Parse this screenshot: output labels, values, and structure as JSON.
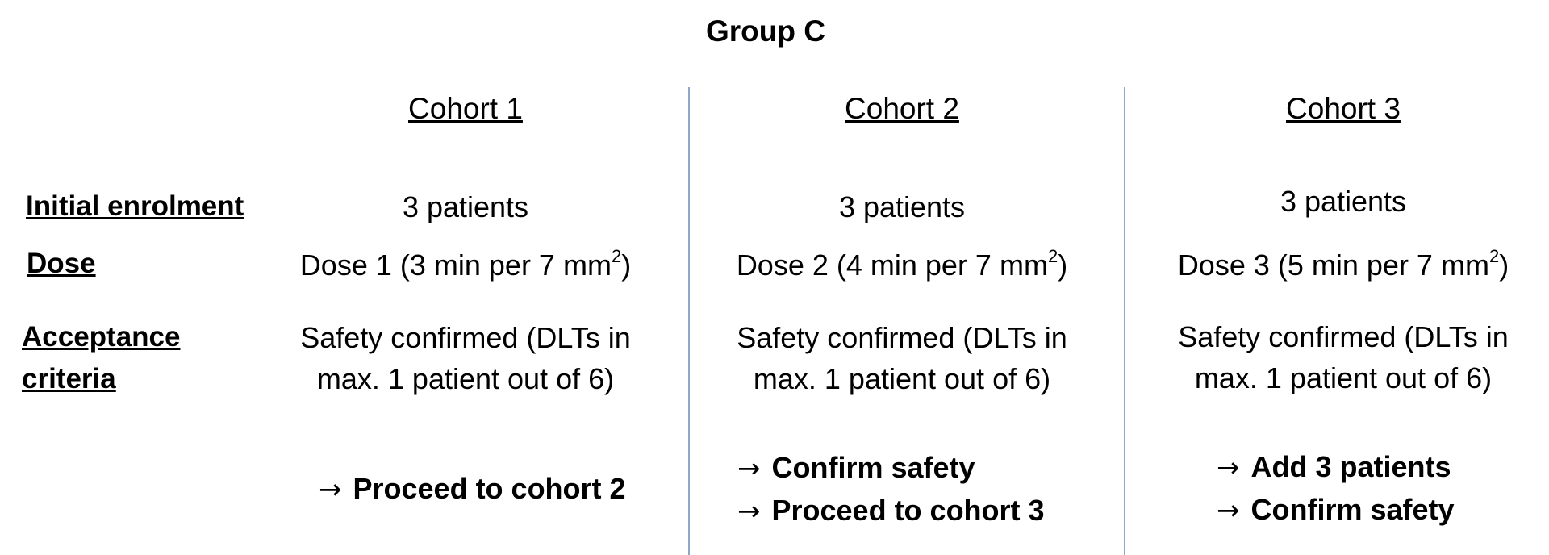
{
  "title": "Group C",
  "row_labels": {
    "initial_enrolment": "Initial enrolment",
    "dose": "Dose",
    "acceptance_line1": "Acceptance",
    "acceptance_line2": "criteria"
  },
  "cohorts": [
    {
      "header": "Cohort 1",
      "enrolment": "3 patients",
      "dose_text": "Dose 1 (3 min per 7 mm",
      "dose_sup": "2",
      "dose_close": ")",
      "criteria_line1": "Safety confirmed (DLTs in",
      "criteria_line2": "max. 1 patient out of 6)",
      "outcomes": [
        "Proceed to cohort 2"
      ]
    },
    {
      "header": "Cohort 2",
      "enrolment": "3 patients",
      "dose_text": "Dose 2 (4 min per 7 mm",
      "dose_sup": "2",
      "dose_close": ")",
      "criteria_line1": "Safety confirmed (DLTs in",
      "criteria_line2": "max. 1 patient out of 6)",
      "outcomes": [
        "Confirm safety",
        "Proceed to cohort 3"
      ]
    },
    {
      "header": "Cohort 3",
      "enrolment": "3 patients",
      "dose_text": "Dose 3 (5 min per 7 mm",
      "dose_sup": "2",
      "dose_close": ")",
      "criteria_line1": "Safety confirmed (DLTs in",
      "criteria_line2": "max. 1 patient out of 6)",
      "outcomes": [
        "Add 3 patients",
        "Confirm safety"
      ]
    }
  ],
  "arrow_glyph": "→",
  "colors": {
    "divider": "#8fa8c8",
    "text": "#000000"
  }
}
